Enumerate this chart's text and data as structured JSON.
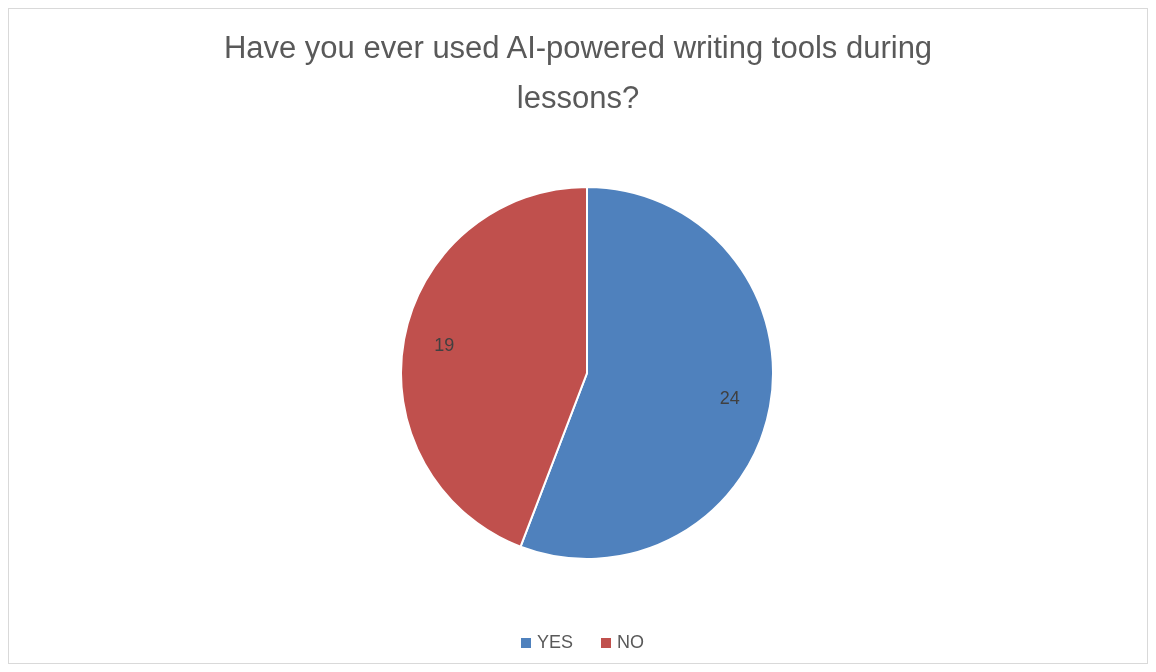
{
  "chart_data": {
    "type": "pie",
    "title": "Have you ever used AI-powered writing tools during lessons?",
    "categories": [
      "YES",
      "NO"
    ],
    "values": [
      24,
      19
    ],
    "colors": [
      "#4f81bd",
      "#c0504d"
    ],
    "data_labels": true,
    "legend": "bottom"
  }
}
